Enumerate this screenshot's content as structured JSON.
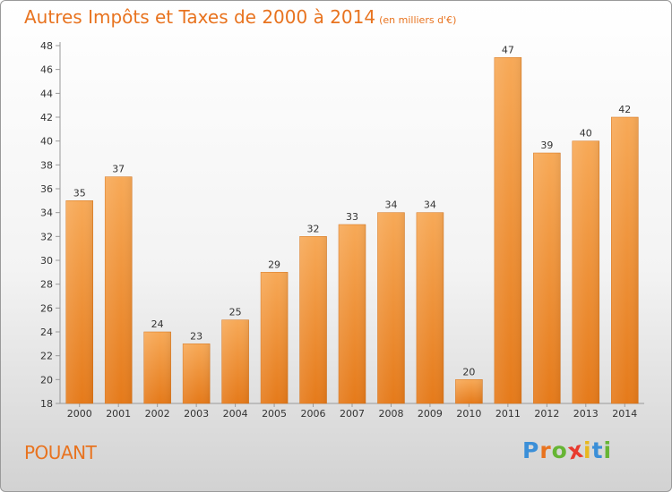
{
  "title": "Autres Impôts et Taxes de 2000 à 2014",
  "subtitle": "(en milliers d'€)",
  "commune": "POUANT",
  "brand": {
    "letters": [
      "P",
      "r",
      "o",
      "x",
      "i",
      "t",
      "i"
    ],
    "colors": [
      "#3b8fd8",
      "#e8731f",
      "#66b534",
      "#e83a2f",
      "#e8b81f",
      "#3b8fd8",
      "#66b534"
    ]
  },
  "chart_data": {
    "type": "bar",
    "categories": [
      "2000",
      "2001",
      "2002",
      "2003",
      "2004",
      "2005",
      "2006",
      "2007",
      "2008",
      "2009",
      "2010",
      "2011",
      "2012",
      "2013",
      "2014"
    ],
    "values": [
      35,
      37,
      24,
      23,
      25,
      29,
      32,
      33,
      34,
      34,
      20,
      47,
      39,
      40,
      42
    ],
    "value_labels": [
      "35",
      "37",
      "24",
      "23",
      "25",
      "29",
      "32",
      "33",
      "34",
      "34",
      "20",
      "47",
      "39",
      "40",
      "42"
    ],
    "y_ticks": [
      "18",
      "20",
      "22",
      "24",
      "26",
      "28",
      "30",
      "32",
      "34",
      "36",
      "38",
      "40",
      "42",
      "44",
      "46",
      "48"
    ],
    "title": "Autres Impôts et Taxes de 2000 à 2014",
    "xlabel": "",
    "ylabel": "",
    "ylim": [
      18,
      48
    ],
    "grid": false,
    "colors": {
      "bar_light": "#f7a957",
      "bar_dark": "#e57a1a",
      "axis": "#999999",
      "text": "#e8731f"
    }
  }
}
